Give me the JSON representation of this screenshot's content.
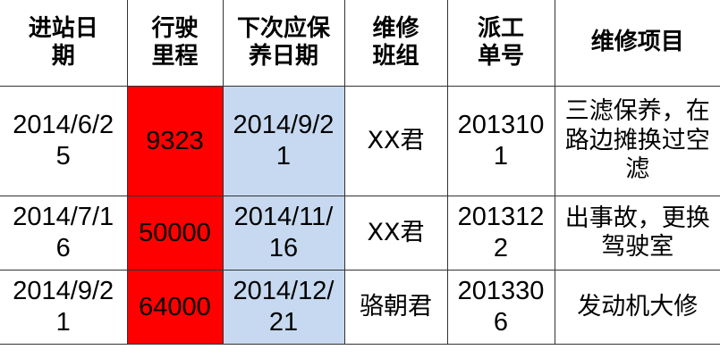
{
  "colors": {
    "mileage_fill": "#ff0000",
    "next_date_fill": "#c6d9f0"
  },
  "headers": [
    "进站日期",
    "行驶里程",
    "下次应保养日期",
    "维修班组",
    "派工单号",
    "维修项目"
  ],
  "rows": [
    {
      "date": "2014/6/25",
      "mileage": "9323",
      "next": "2014/9/21",
      "team": "XX君",
      "ticket": "2013101",
      "items": "三滤保养，在路边摊换过空滤"
    },
    {
      "date": "2014/7/16",
      "mileage": "50000",
      "next": "2014/11/16",
      "team": "XX君",
      "ticket": "2013122",
      "items": "出事故，更换驾驶室"
    },
    {
      "date": "2014/9/21",
      "mileage": "64000",
      "next": "2014/12/21",
      "team": "骆朝君",
      "ticket": "2013306",
      "items": "发动机大修"
    }
  ]
}
